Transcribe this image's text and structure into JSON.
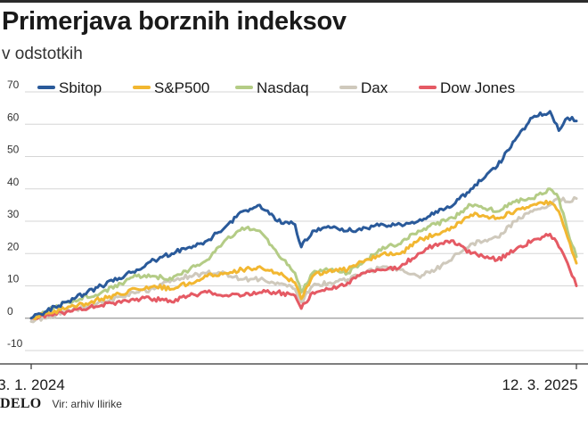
{
  "title": "Primerjava borznih indeksov",
  "subtitle": "v odstotkih",
  "footer": {
    "brand": "DELO",
    "source": "Vir: arhiv Ilirike"
  },
  "colors": {
    "Sbitop": "#2a5a9a",
    "S&P500": "#f2b731",
    "Nasdaq": "#b4cc86",
    "Dax": "#cfc9bc",
    "Dow Jones": "#e55a64"
  },
  "chart_data": {
    "type": "line",
    "title": "Primerjava borznih indeksov",
    "subtitle": "v odstotkih",
    "x_start_label": "3. 1. 2024",
    "x_end_label": "12. 3. 2025",
    "ylim": [
      -10,
      70
    ],
    "yticks": [
      -10,
      0,
      10,
      20,
      30,
      40,
      50,
      60,
      70
    ],
    "grid": true,
    "legend": "top-left",
    "x": [
      "2024-01-03",
      "2024-01-31",
      "2024-02-28",
      "2024-03-27",
      "2024-04-10",
      "2024-04-24",
      "2024-05-08",
      "2024-05-22",
      "2024-06-05",
      "2024-06-19",
      "2024-07-03",
      "2024-07-17",
      "2024-07-31",
      "2024-08-05",
      "2024-08-14",
      "2024-08-28",
      "2024-09-11",
      "2024-09-25",
      "2024-10-09",
      "2024-10-23",
      "2024-11-06",
      "2024-11-20",
      "2024-12-04",
      "2024-12-18",
      "2025-01-08",
      "2025-01-22",
      "2025-02-05",
      "2025-02-19",
      "2025-02-26",
      "2025-03-05",
      "2025-03-12"
    ],
    "series": [
      {
        "name": "Sbitop",
        "values": [
          0,
          5,
          10,
          15,
          18,
          20,
          22,
          24,
          28,
          33,
          35,
          30,
          29,
          22,
          27,
          28,
          27,
          28,
          29,
          29,
          30,
          33,
          35,
          40,
          47,
          55,
          62,
          64,
          58,
          62,
          61
        ]
      },
      {
        "name": "S&P500",
        "values": [
          0,
          3,
          6,
          9,
          10,
          9,
          11,
          13,
          14,
          15,
          16,
          14,
          11,
          6,
          13,
          15,
          15,
          18,
          20,
          20,
          24,
          26,
          28,
          32,
          31,
          33,
          35,
          36,
          33,
          25,
          17
        ]
      },
      {
        "name": "Nasdaq",
        "values": [
          0,
          5,
          8,
          13,
          13,
          12,
          15,
          18,
          24,
          28,
          27,
          20,
          14,
          8,
          14,
          15,
          14,
          18,
          22,
          23,
          27,
          29,
          31,
          35,
          33,
          36,
          37,
          40,
          37,
          27,
          19
        ]
      },
      {
        "name": "Dax",
        "values": [
          -1,
          2,
          5,
          8,
          9,
          12,
          13,
          14,
          14,
          12,
          12,
          11,
          9,
          5,
          10,
          11,
          12,
          14,
          16,
          15,
          13,
          15,
          19,
          23,
          25,
          30,
          33,
          35,
          37,
          36,
          37
        ]
      },
      {
        "name": "Dow Jones",
        "values": [
          0,
          2,
          4,
          6,
          6,
          5,
          7,
          8,
          7,
          7,
          8,
          8,
          7,
          3,
          8,
          9,
          11,
          14,
          15,
          16,
          20,
          23,
          24,
          20,
          18,
          21,
          24,
          26,
          22,
          17,
          10
        ]
      }
    ]
  }
}
